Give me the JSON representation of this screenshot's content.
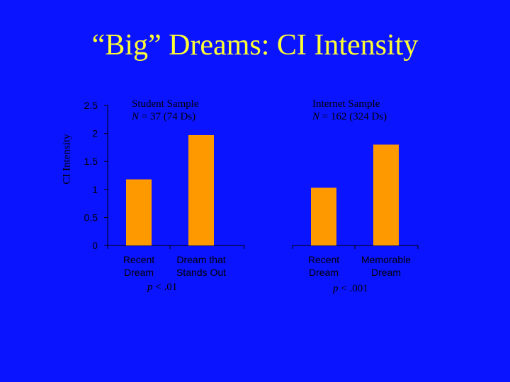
{
  "slide": {
    "title": "“Big” Dreams: CI Intensity"
  },
  "colors": {
    "background": "#0a14ff",
    "title": "#ffff33",
    "bar": "#ff9900",
    "text": "#000000"
  },
  "chart_data": {
    "type": "bar",
    "ylabel": "CI Intensity",
    "ylim": [
      0,
      2.5
    ],
    "yticks": [
      "0",
      "0.5",
      "1",
      "1.5",
      "2",
      "2.5"
    ],
    "groups": [
      {
        "sample_label": "Student Sample",
        "n_label": "N",
        "n_text": " = 37 (74 Ds)",
        "p_label": "p",
        "p_text": " < .01",
        "categories": [
          [
            "Recent",
            "Dream"
          ],
          [
            "Dream that",
            "Stands Out"
          ]
        ],
        "values": [
          1.18,
          1.97
        ]
      },
      {
        "sample_label": "Internet Sample",
        "n_label": "N",
        "n_text": " = 162 (324 Ds)",
        "p_label": "p",
        "p_text": " < .001",
        "categories": [
          [
            "Recent",
            "Dream"
          ],
          [
            "Memorable",
            "Dream"
          ]
        ],
        "values": [
          1.03,
          1.8
        ]
      }
    ]
  }
}
